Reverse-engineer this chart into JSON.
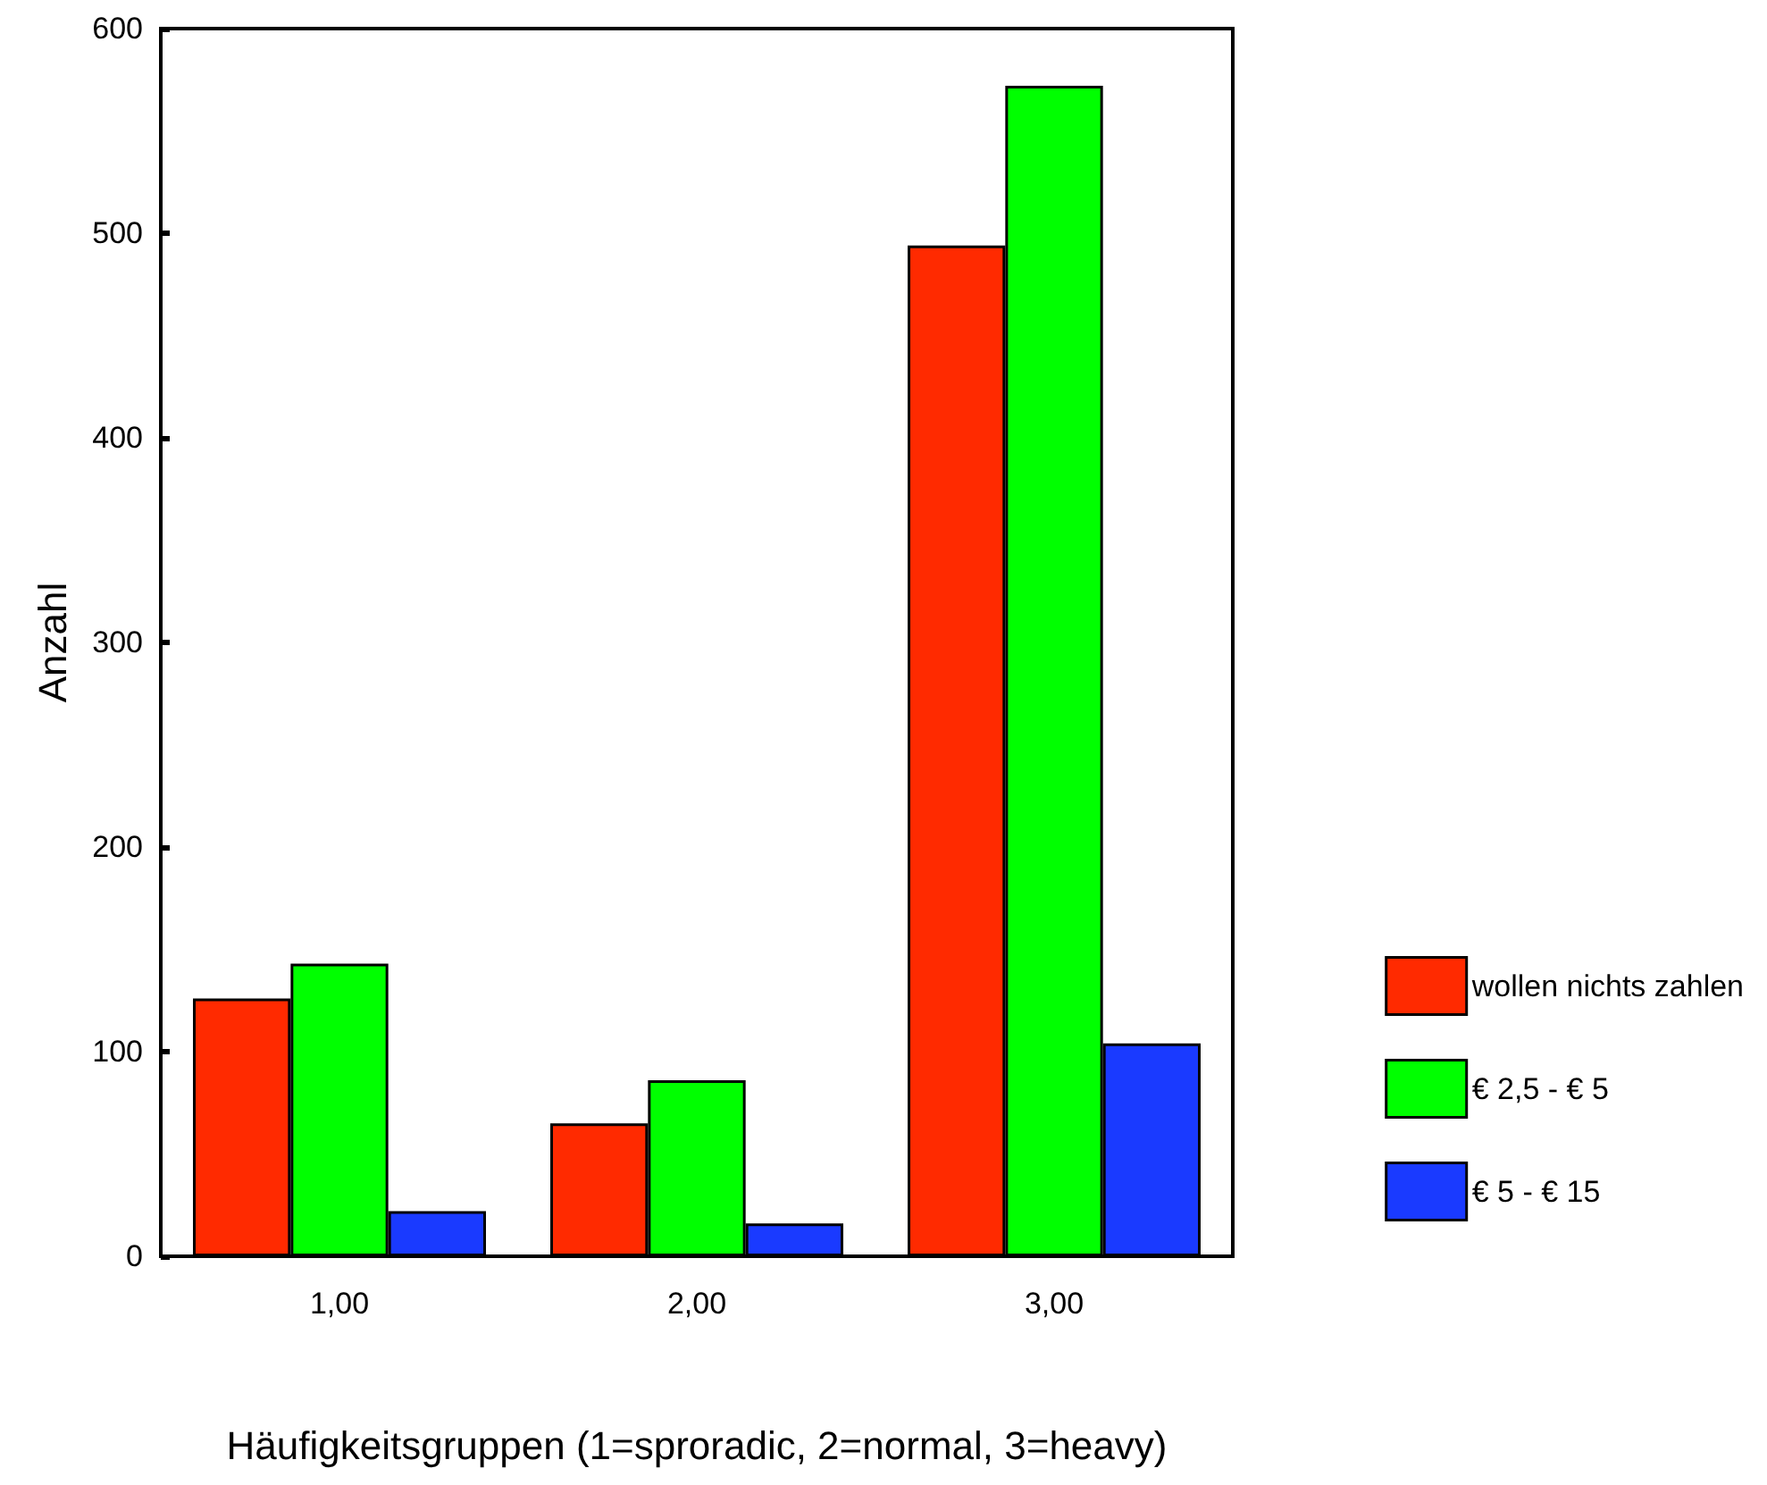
{
  "chart_data": {
    "type": "bar",
    "xlabel": "Häufigkeitsgruppen (1=sproradic, 2=normal, 3=heavy)",
    "ylabel": "Anzahl",
    "categories": [
      "1,00",
      "2,00",
      "3,00"
    ],
    "series": [
      {
        "name": "wollen nichts zahlen",
        "color": "#ff2a00",
        "values": [
          126,
          65,
          494
        ]
      },
      {
        "name": "€ 2,5 - € 5",
        "color": "#00ff00",
        "values": [
          143,
          86,
          572
        ]
      },
      {
        "name": "€ 5 - € 15",
        "color": "#1a3aff",
        "values": [
          22,
          16,
          104
        ]
      }
    ],
    "ylim": [
      0,
      600
    ],
    "yticks": [
      0,
      100,
      200,
      300,
      400,
      500,
      600
    ],
    "grid": false,
    "legend": "right"
  }
}
